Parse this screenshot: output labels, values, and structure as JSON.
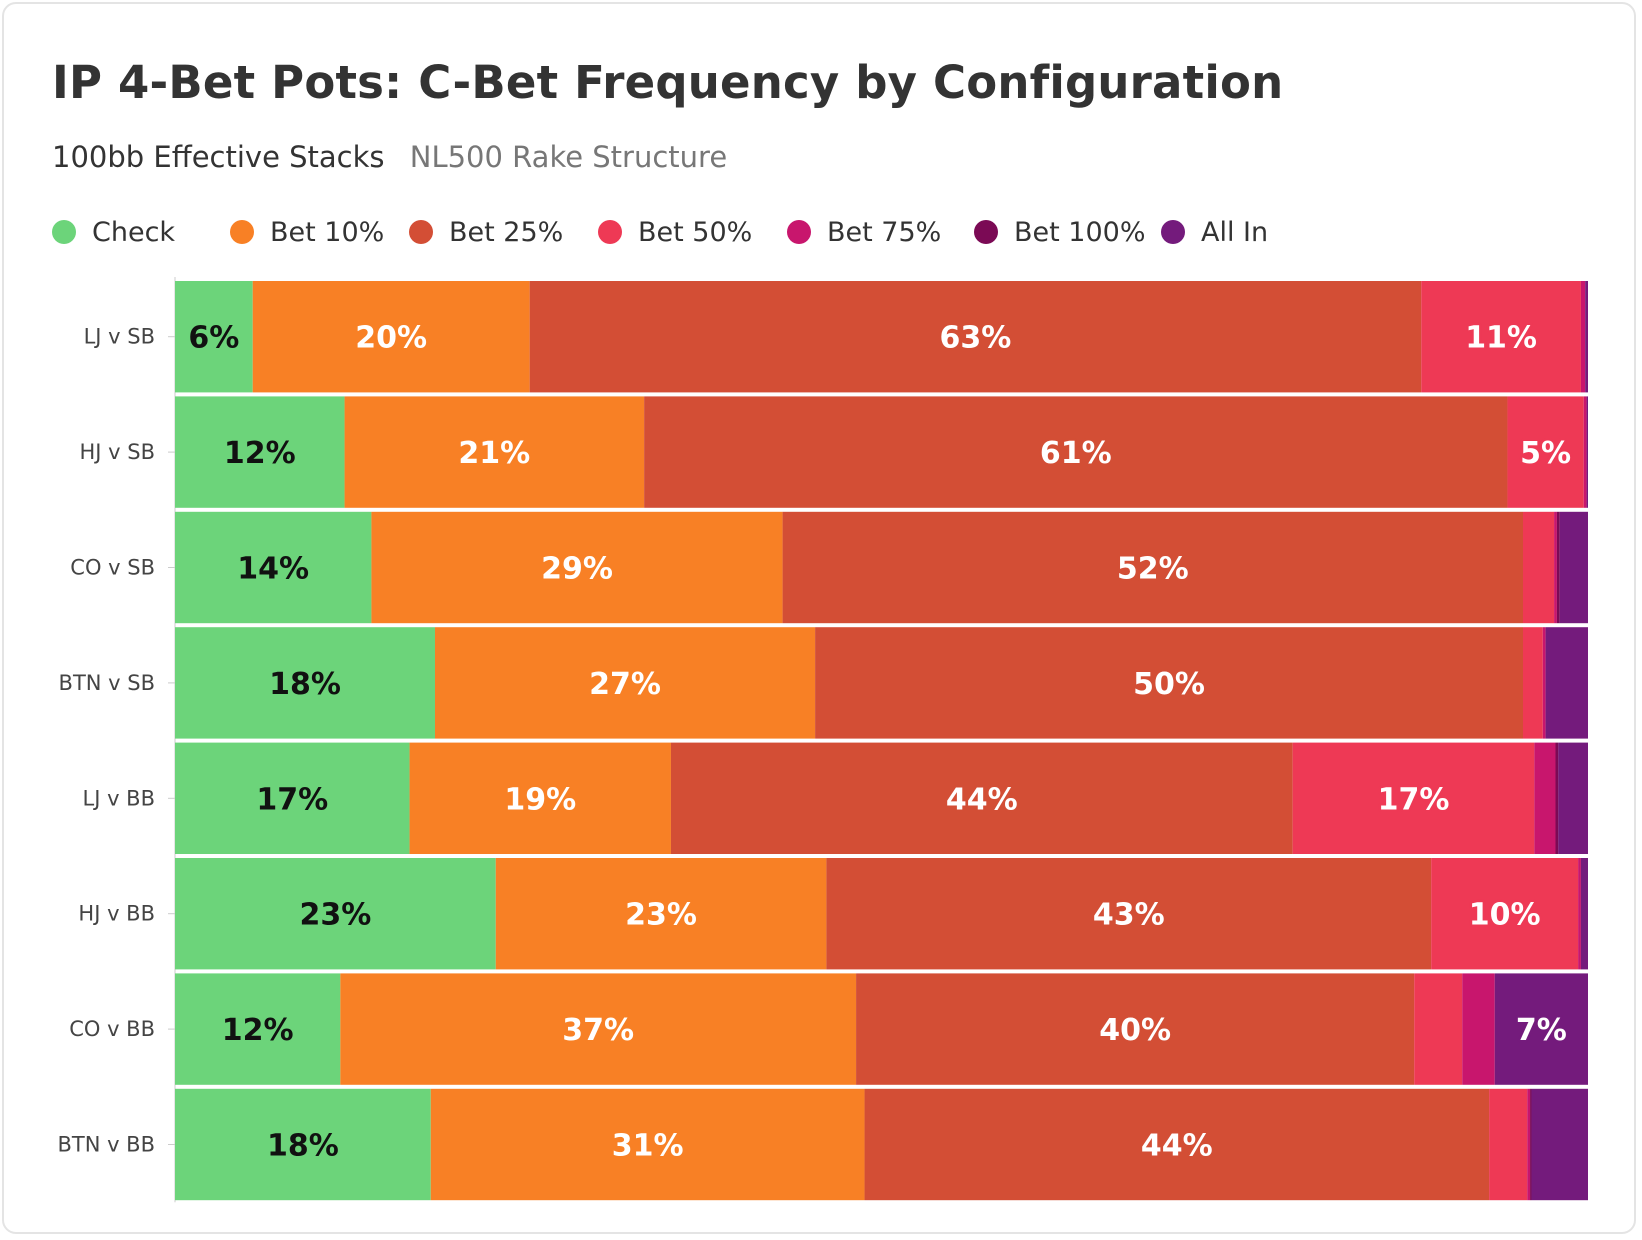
{
  "chart_data": {
    "type": "bar",
    "orientation": "horizontal",
    "stacked": true,
    "title": "IP 4-Bet Pots: C-Bet Frequency by Configuration",
    "subtitle": "100bb Effective Stacks",
    "subtitle_secondary": "NL500 Rake Structure",
    "categories": [
      "LJ v SB",
      "HJ v SB",
      "CO v SB",
      "BTN v SB",
      "LJ v BB",
      "HJ v BB",
      "CO v BB",
      "BTN v BB"
    ],
    "series": [
      {
        "name": "Check",
        "color": "#6cd47a",
        "label_color": "#111111",
        "values": [
          5.5,
          12.0,
          13.9,
          18.4,
          16.6,
          22.7,
          11.7,
          18.1
        ]
      },
      {
        "name": "Bet 10%",
        "color": "#f88025",
        "label_color": "#ffffff",
        "values": [
          19.6,
          21.2,
          29.1,
          26.9,
          18.5,
          23.4,
          36.5,
          30.7
        ]
      },
      {
        "name": "Bet 25%",
        "color": "#d34e35",
        "label_color": "#ffffff",
        "values": [
          63.1,
          61.1,
          52.4,
          50.1,
          44.0,
          42.8,
          39.5,
          44.2
        ]
      },
      {
        "name": "Bet 50%",
        "color": "#ee3955",
        "label_color": "#ffffff",
        "values": [
          11.3,
          5.4,
          2.2,
          1.4,
          17.1,
          10.4,
          3.4,
          2.7
        ]
      },
      {
        "name": "Bet 75%",
        "color": "#c8166d",
        "label_color": "#ffffff",
        "values": [
          0.3,
          0.2,
          0.2,
          0.2,
          1.5,
          0.2,
          2.3,
          0.2
        ]
      },
      {
        "name": "Bet 100%",
        "color": "#7b0a55",
        "label_color": "#ffffff",
        "values": [
          0.0,
          0.0,
          0.2,
          0.0,
          0.2,
          0.0,
          0.0,
          0.1
        ]
      },
      {
        "name": "All In",
        "color": "#741b7c",
        "label_color": "#ffffff",
        "values": [
          0.2,
          0.1,
          2.0,
          3.0,
          2.1,
          0.5,
          6.6,
          4.0
        ]
      }
    ],
    "xlim": [
      0,
      100
    ],
    "value_labels": "percent, shown on segments of 5% or more",
    "legend_position": "top-left",
    "grid": false
  }
}
